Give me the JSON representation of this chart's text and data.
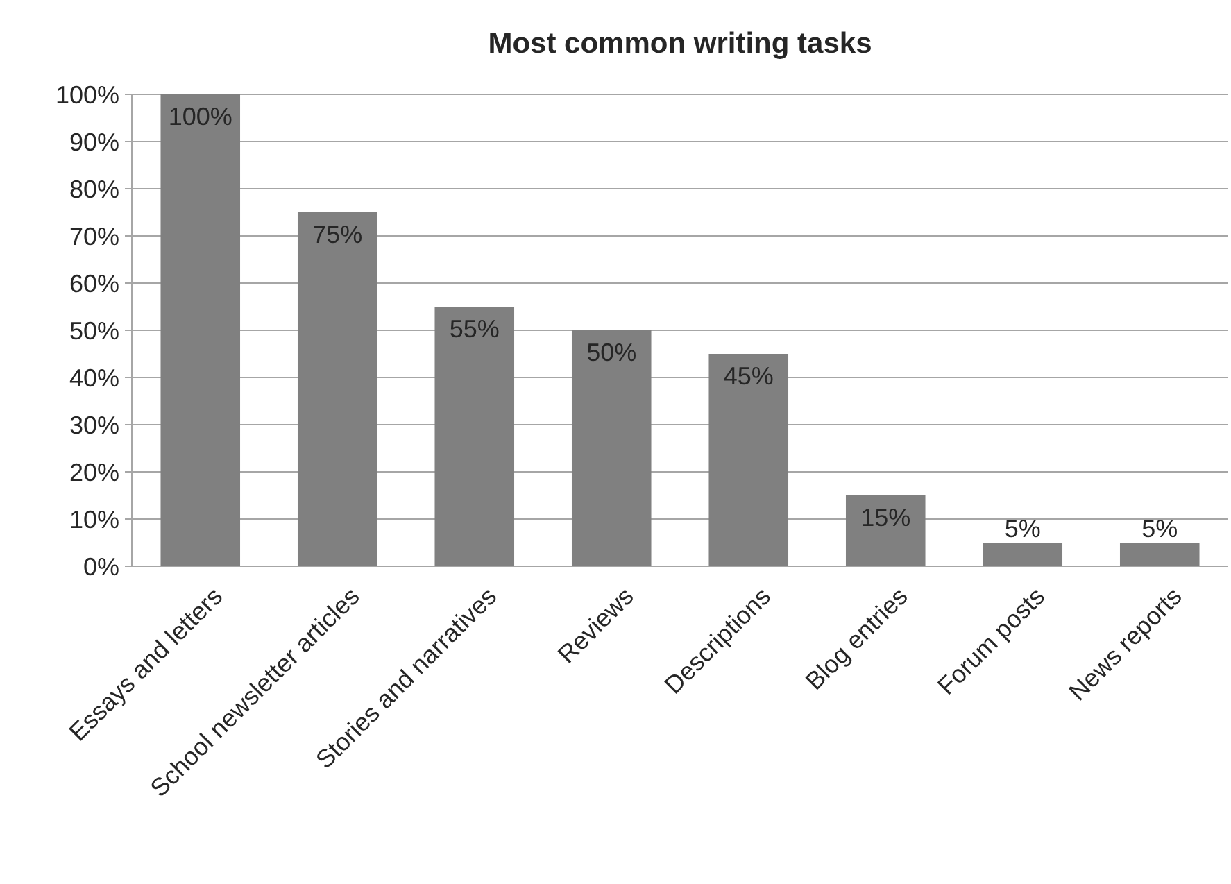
{
  "chart_data": {
    "type": "bar",
    "title": "Most common writing tasks",
    "categories": [
      "Essays and letters",
      "School newsletter articles",
      "Stories and narratives",
      "Reviews",
      "Descriptions",
      "Blog entries",
      "Forum posts",
      "News reports"
    ],
    "values": [
      100,
      75,
      55,
      50,
      45,
      15,
      5,
      5
    ],
    "value_labels": [
      "100%",
      "75%",
      "55%",
      "50%",
      "45%",
      "15%",
      "5%",
      "5%"
    ],
    "color": "#808080",
    "ylim": [
      0,
      100
    ],
    "yticks": [
      {
        "value": 0,
        "label": "0%"
      },
      {
        "value": 10,
        "label": "10%"
      },
      {
        "value": 20,
        "label": "20%"
      },
      {
        "value": 30,
        "label": "30%"
      },
      {
        "value": 40,
        "label": "40%"
      },
      {
        "value": 50,
        "label": "50%"
      },
      {
        "value": 60,
        "label": "60%"
      },
      {
        "value": 70,
        "label": "70%"
      },
      {
        "value": 80,
        "label": "80%"
      },
      {
        "value": 90,
        "label": "90%"
      },
      {
        "value": 100,
        "label": "100%"
      }
    ],
    "grid": "y"
  }
}
